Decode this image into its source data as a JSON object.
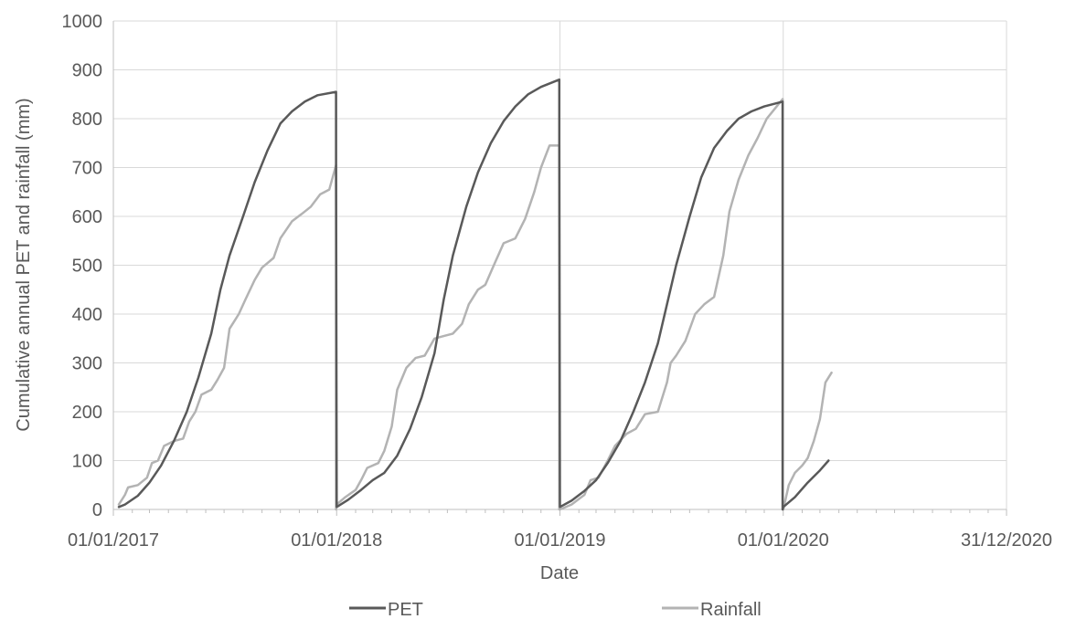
{
  "chart_data": {
    "type": "line",
    "title": "",
    "xlabel": "Date",
    "ylabel": "Cumulative annual PET and rainfall (mm)",
    "ylim": [
      0,
      1000
    ],
    "yticks": [
      0,
      100,
      200,
      300,
      400,
      500,
      600,
      700,
      800,
      900,
      1000
    ],
    "xlim": [
      "2017-01-01",
      "2020-12-31"
    ],
    "xticks": [
      {
        "date": "2017-01-01",
        "label": "01/01/2017"
      },
      {
        "date": "2018-01-01",
        "label": "01/01/2018"
      },
      {
        "date": "2019-01-01",
        "label": "01/01/2019"
      },
      {
        "date": "2020-01-01",
        "label": "01/01/2020"
      },
      {
        "date": "2020-12-31",
        "label": "31/12/2020"
      }
    ],
    "grid": true,
    "legend_position": "bottom",
    "series": [
      {
        "name": "PET",
        "color": "#595959",
        "points": [
          [
            "2017-01-10",
            5
          ],
          [
            "2017-01-20",
            10
          ],
          [
            "2017-02-10",
            28
          ],
          [
            "2017-03-01",
            55
          ],
          [
            "2017-03-20",
            90
          ],
          [
            "2017-04-10",
            140
          ],
          [
            "2017-05-01",
            200
          ],
          [
            "2017-05-20",
            270
          ],
          [
            "2017-06-10",
            360
          ],
          [
            "2017-06-25",
            450
          ],
          [
            "2017-07-10",
            520
          ],
          [
            "2017-08-01",
            600
          ],
          [
            "2017-08-20",
            670
          ],
          [
            "2017-09-10",
            735
          ],
          [
            "2017-10-01",
            790
          ],
          [
            "2017-10-20",
            815
          ],
          [
            "2017-11-10",
            835
          ],
          [
            "2017-12-01",
            848
          ],
          [
            "2017-12-31",
            855
          ],
          [
            "2017-12-31",
            700
          ],
          [
            "2018-01-01",
            5
          ],
          [
            "2018-01-20",
            20
          ],
          [
            "2018-02-10",
            40
          ],
          [
            "2018-03-01",
            60
          ],
          [
            "2018-03-20",
            75
          ],
          [
            "2018-04-10",
            110
          ],
          [
            "2018-05-01",
            165
          ],
          [
            "2018-05-20",
            230
          ],
          [
            "2018-06-10",
            320
          ],
          [
            "2018-06-25",
            430
          ],
          [
            "2018-07-10",
            520
          ],
          [
            "2018-08-01",
            620
          ],
          [
            "2018-08-20",
            690
          ],
          [
            "2018-09-10",
            750
          ],
          [
            "2018-10-01",
            795
          ],
          [
            "2018-10-20",
            825
          ],
          [
            "2018-11-10",
            850
          ],
          [
            "2018-12-01",
            865
          ],
          [
            "2018-12-31",
            880
          ],
          [
            "2018-12-31",
            740
          ],
          [
            "2019-01-01",
            5
          ],
          [
            "2019-01-20",
            18
          ],
          [
            "2019-02-10",
            38
          ],
          [
            "2019-03-01",
            60
          ],
          [
            "2019-03-20",
            95
          ],
          [
            "2019-04-10",
            140
          ],
          [
            "2019-05-01",
            200
          ],
          [
            "2019-05-20",
            260
          ],
          [
            "2019-06-10",
            340
          ],
          [
            "2019-06-25",
            420
          ],
          [
            "2019-07-10",
            500
          ],
          [
            "2019-08-01",
            600
          ],
          [
            "2019-08-20",
            680
          ],
          [
            "2019-09-10",
            740
          ],
          [
            "2019-10-01",
            775
          ],
          [
            "2019-10-20",
            800
          ],
          [
            "2019-11-10",
            815
          ],
          [
            "2019-12-01",
            825
          ],
          [
            "2019-12-31",
            835
          ],
          [
            "2019-12-31",
            0
          ],
          [
            "2020-01-01",
            5
          ],
          [
            "2020-01-20",
            25
          ],
          [
            "2020-02-10",
            55
          ],
          [
            "2020-03-01",
            80
          ],
          [
            "2020-03-15",
            100
          ]
        ]
      },
      {
        "name": "Rainfall",
        "color": "#b3b3b3",
        "points": [
          [
            "2017-01-10",
            10
          ],
          [
            "2017-01-20",
            30
          ],
          [
            "2017-01-25",
            45
          ],
          [
            "2017-02-10",
            50
          ],
          [
            "2017-02-25",
            65
          ],
          [
            "2017-03-05",
            95
          ],
          [
            "2017-03-15",
            100
          ],
          [
            "2017-03-25",
            130
          ],
          [
            "2017-04-10",
            140
          ],
          [
            "2017-04-25",
            145
          ],
          [
            "2017-05-05",
            180
          ],
          [
            "2017-05-15",
            200
          ],
          [
            "2017-05-25",
            235
          ],
          [
            "2017-06-10",
            245
          ],
          [
            "2017-06-20",
            265
          ],
          [
            "2017-07-01",
            290
          ],
          [
            "2017-07-10",
            370
          ],
          [
            "2017-07-25",
            400
          ],
          [
            "2017-08-05",
            430
          ],
          [
            "2017-08-20",
            470
          ],
          [
            "2017-09-01",
            495
          ],
          [
            "2017-09-20",
            515
          ],
          [
            "2017-10-01",
            555
          ],
          [
            "2017-10-20",
            590
          ],
          [
            "2017-11-05",
            605
          ],
          [
            "2017-11-20",
            620
          ],
          [
            "2017-12-05",
            645
          ],
          [
            "2017-12-20",
            655
          ],
          [
            "2017-12-31",
            705
          ],
          [
            "2017-12-31",
            0
          ],
          [
            "2018-01-01",
            10
          ],
          [
            "2018-01-15",
            25
          ],
          [
            "2018-02-01",
            40
          ],
          [
            "2018-02-10",
            60
          ],
          [
            "2018-02-20",
            85
          ],
          [
            "2018-03-10",
            95
          ],
          [
            "2018-03-20",
            120
          ],
          [
            "2018-04-01",
            170
          ],
          [
            "2018-04-10",
            245
          ],
          [
            "2018-04-25",
            290
          ],
          [
            "2018-05-10",
            310
          ],
          [
            "2018-05-25",
            315
          ],
          [
            "2018-06-10",
            350
          ],
          [
            "2018-06-25",
            355
          ],
          [
            "2018-07-10",
            360
          ],
          [
            "2018-07-25",
            380
          ],
          [
            "2018-08-05",
            420
          ],
          [
            "2018-08-20",
            450
          ],
          [
            "2018-09-01",
            460
          ],
          [
            "2018-09-15",
            500
          ],
          [
            "2018-10-01",
            545
          ],
          [
            "2018-10-20",
            555
          ],
          [
            "2018-11-05",
            595
          ],
          [
            "2018-11-20",
            650
          ],
          [
            "2018-12-01",
            700
          ],
          [
            "2018-12-15",
            745
          ],
          [
            "2018-12-31",
            745
          ],
          [
            "2018-12-31",
            0
          ],
          [
            "2019-01-01",
            0
          ],
          [
            "2019-01-20",
            10
          ],
          [
            "2019-02-10",
            30
          ],
          [
            "2019-02-20",
            60
          ],
          [
            "2019-03-05",
            65
          ],
          [
            "2019-03-20",
            100
          ],
          [
            "2019-04-01",
            130
          ],
          [
            "2019-04-20",
            155
          ],
          [
            "2019-05-05",
            165
          ],
          [
            "2019-05-20",
            195
          ],
          [
            "2019-06-10",
            200
          ],
          [
            "2019-06-25",
            260
          ],
          [
            "2019-07-01",
            300
          ],
          [
            "2019-07-10",
            315
          ],
          [
            "2019-07-25",
            345
          ],
          [
            "2019-08-10",
            400
          ],
          [
            "2019-08-25",
            420
          ],
          [
            "2019-09-10",
            435
          ],
          [
            "2019-09-25",
            520
          ],
          [
            "2019-10-05",
            610
          ],
          [
            "2019-10-20",
            675
          ],
          [
            "2019-11-05",
            725
          ],
          [
            "2019-11-20",
            760
          ],
          [
            "2019-12-05",
            800
          ],
          [
            "2019-12-31",
            840
          ],
          [
            "2019-12-31",
            0
          ],
          [
            "2020-01-01",
            0
          ],
          [
            "2020-01-10",
            50
          ],
          [
            "2020-01-20",
            75
          ],
          [
            "2020-02-01",
            90
          ],
          [
            "2020-02-10",
            105
          ],
          [
            "2020-02-20",
            140
          ],
          [
            "2020-03-01",
            185
          ],
          [
            "2020-03-10",
            260
          ],
          [
            "2020-03-20",
            280
          ]
        ]
      }
    ]
  }
}
